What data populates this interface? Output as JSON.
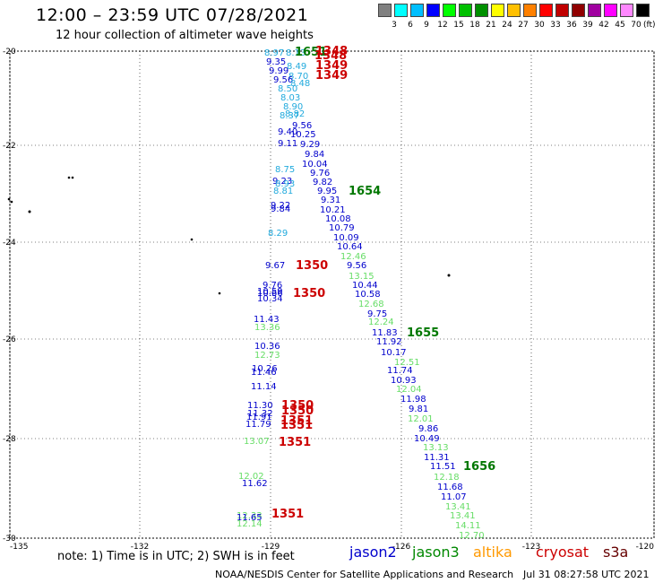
{
  "header": {
    "title": "12:00 – 23:59 UTC 07/28/2021",
    "subtitle": "12 hour collection of altimeter wave heights"
  },
  "scale": {
    "unit": "(ft)",
    "colors": [
      "#808080",
      "#00ffff",
      "#00bfff",
      "#0000ff",
      "#00ff00",
      "#00c000",
      "#009000",
      "#ffff00",
      "#ffc000",
      "#ff8000",
      "#ff0000",
      "#c00000",
      "#900000",
      "#a000a0",
      "#ff00ff",
      "#ff88ff",
      "#000000"
    ],
    "labels": [
      "3",
      "6",
      "9",
      "12",
      "15",
      "18",
      "21",
      "24",
      "27",
      "30",
      "33",
      "36",
      "39",
      "42",
      "45",
      "70"
    ]
  },
  "axes": {
    "lat_labels": [
      "-20",
      "-22",
      "-24",
      "-26",
      "-28",
      "-30"
    ],
    "lon_labels": [
      "-135",
      "-132",
      "-129",
      "-126",
      "-123",
      "-120"
    ]
  },
  "colors": {
    "jason2": "#0000cc",
    "jason3": "#008800",
    "altika": "#ff9900",
    "cryosat": "#cc0000",
    "s3a": "#660000",
    "lt_green": "#66dd66",
    "lt_blue": "#22aadd",
    "dark_green": "#007700"
  },
  "legend": {
    "note": "note: 1) Time is in UTC; 2) SWH is in feet",
    "sats": [
      "jason2",
      "jason3",
      "altika",
      "cryosat",
      "s3a"
    ]
  },
  "footer": {
    "org": "NOAA/NESDIS Center for Satellite Applications and Research",
    "datetime": "Jul 31 08:27:58 UTC 2021"
  },
  "track_values": [
    {
      "v": "8.97",
      "c": "lt_blue"
    },
    {
      "v": "8.13",
      "c": "lt_blue"
    },
    {
      "v": "9.35",
      "c": "jason2"
    },
    {
      "v": "8.49",
      "c": "lt_blue"
    },
    {
      "v": "9.99",
      "c": "jason2"
    },
    {
      "v": "8.70",
      "c": "lt_blue"
    },
    {
      "v": "9.56",
      "c": "jason2"
    },
    {
      "v": "8.48",
      "c": "lt_blue"
    },
    {
      "v": "8.50",
      "c": "lt_blue"
    },
    {
      "v": "8.03",
      "c": "lt_blue"
    },
    {
      "v": "8.90",
      "c": "lt_blue"
    },
    {
      "v": "8.82",
      "c": "lt_blue"
    },
    {
      "v": "8.37",
      "c": "lt_blue"
    },
    {
      "v": "9.56",
      "c": "jason2"
    },
    {
      "v": "9.40",
      "c": "jason2"
    },
    {
      "v": "10.25",
      "c": "jason2"
    },
    {
      "v": "9.11",
      "c": "jason2"
    },
    {
      "v": "9.29",
      "c": "jason2"
    },
    {
      "v": "9.84",
      "c": "jason2"
    },
    {
      "v": "10.04",
      "c": "jason2"
    },
    {
      "v": "9.76",
      "c": "jason2"
    },
    {
      "v": "8.75",
      "c": "lt_blue"
    },
    {
      "v": "9.23",
      "c": "jason2"
    },
    {
      "v": "9.82",
      "c": "jason2"
    },
    {
      "v": "8.93",
      "c": "lt_blue"
    },
    {
      "v": "9.95",
      "c": "jason2"
    },
    {
      "v": "8.81",
      "c": "lt_blue"
    },
    {
      "v": "9.31",
      "c": "jason2"
    },
    {
      "v": "9.22",
      "c": "jason2"
    },
    {
      "v": "9.84",
      "c": "jason2"
    },
    {
      "v": "10.21",
      "c": "jason2"
    },
    {
      "v": "10.08",
      "c": "jason2"
    },
    {
      "v": "10.79",
      "c": "jason2"
    },
    {
      "v": "10.09",
      "c": "jason2"
    },
    {
      "v": "8.29",
      "c": "lt_blue"
    },
    {
      "v": "10.64",
      "c": "jason2"
    },
    {
      "v": "12.46",
      "c": "lt_green"
    },
    {
      "v": "9.67",
      "c": "jason2"
    },
    {
      "v": "9.56",
      "c": "jason2"
    },
    {
      "v": "13.15",
      "c": "lt_green"
    },
    {
      "v": "9.76",
      "c": "jason2"
    },
    {
      "v": "10.44",
      "c": "jason2"
    },
    {
      "v": "10.59",
      "c": "jason2"
    },
    {
      "v": "10.66",
      "c": "jason2"
    },
    {
      "v": "10.34",
      "c": "jason2"
    },
    {
      "v": "10.58",
      "c": "jason2"
    },
    {
      "v": "12.68",
      "c": "lt_green"
    },
    {
      "v": "9.75",
      "c": "jason2"
    },
    {
      "v": "11.43",
      "c": "jason2"
    },
    {
      "v": "12.24",
      "c": "lt_green"
    },
    {
      "v": "13.36",
      "c": "lt_green"
    },
    {
      "v": "11.83",
      "c": "jason2"
    },
    {
      "v": "11.92",
      "c": "jason2"
    },
    {
      "v": "10.36",
      "c": "jason2"
    },
    {
      "v": "10.17",
      "c": "jason2"
    },
    {
      "v": "12.73",
      "c": "lt_green"
    },
    {
      "v": "12.51",
      "c": "lt_green"
    },
    {
      "v": "10.26",
      "c": "jason2"
    },
    {
      "v": "11.46",
      "c": "jason2"
    },
    {
      "v": "11.74",
      "c": "jason2"
    },
    {
      "v": "10.93",
      "c": "jason2"
    },
    {
      "v": "11.14",
      "c": "jason2"
    },
    {
      "v": "12.04",
      "c": "lt_green"
    },
    {
      "v": "11.98",
      "c": "jason2"
    },
    {
      "v": "11.30",
      "c": "jason2"
    },
    {
      "v": "9.81",
      "c": "jason2"
    },
    {
      "v": "11.32",
      "c": "jason2"
    },
    {
      "v": "11.91",
      "c": "jason2"
    },
    {
      "v": "12.01",
      "c": "lt_green"
    },
    {
      "v": "11.79",
      "c": "jason2"
    },
    {
      "v": "9.86",
      "c": "jason2"
    },
    {
      "v": "10.49",
      "c": "jason2"
    },
    {
      "v": "13.07",
      "c": "lt_green"
    },
    {
      "v": "13.13",
      "c": "lt_green"
    },
    {
      "v": "11.31",
      "c": "jason2"
    },
    {
      "v": "11.51",
      "c": "jason2"
    },
    {
      "v": "12.18",
      "c": "lt_green"
    },
    {
      "v": "12.02",
      "c": "lt_green"
    },
    {
      "v": "11.68",
      "c": "jason2"
    },
    {
      "v": "11.62",
      "c": "jason2"
    },
    {
      "v": "11.07",
      "c": "jason2"
    },
    {
      "v": "13.41",
      "c": "lt_green"
    },
    {
      "v": "12.33",
      "c": "lt_green"
    },
    {
      "v": "13.41",
      "c": "lt_green"
    },
    {
      "v": "11.65",
      "c": "jason2"
    },
    {
      "v": "14.11",
      "c": "lt_green"
    },
    {
      "v": "12.14",
      "c": "lt_green"
    },
    {
      "v": "12.70",
      "c": "lt_green"
    }
  ],
  "time_labels": [
    {
      "v": "1651",
      "c": "dark_green"
    },
    {
      "v": "1348",
      "c": "cryosat"
    },
    {
      "v": "1348",
      "c": "cryosat"
    },
    {
      "v": "1349",
      "c": "cryosat"
    },
    {
      "v": "1349",
      "c": "cryosat"
    },
    {
      "v": "1654",
      "c": "dark_green"
    },
    {
      "v": "1350",
      "c": "cryosat"
    },
    {
      "v": "1350",
      "c": "cryosat"
    },
    {
      "v": "1655",
      "c": "dark_green"
    },
    {
      "v": "1350",
      "c": "cryosat"
    },
    {
      "v": "1350",
      "c": "cryosat"
    },
    {
      "v": "1351",
      "c": "cryosat"
    },
    {
      "v": "1351",
      "c": "cryosat"
    },
    {
      "v": "1351",
      "c": "cryosat"
    },
    {
      "v": "1656",
      "c": "dark_green"
    },
    {
      "v": "1351",
      "c": "cryosat"
    }
  ]
}
